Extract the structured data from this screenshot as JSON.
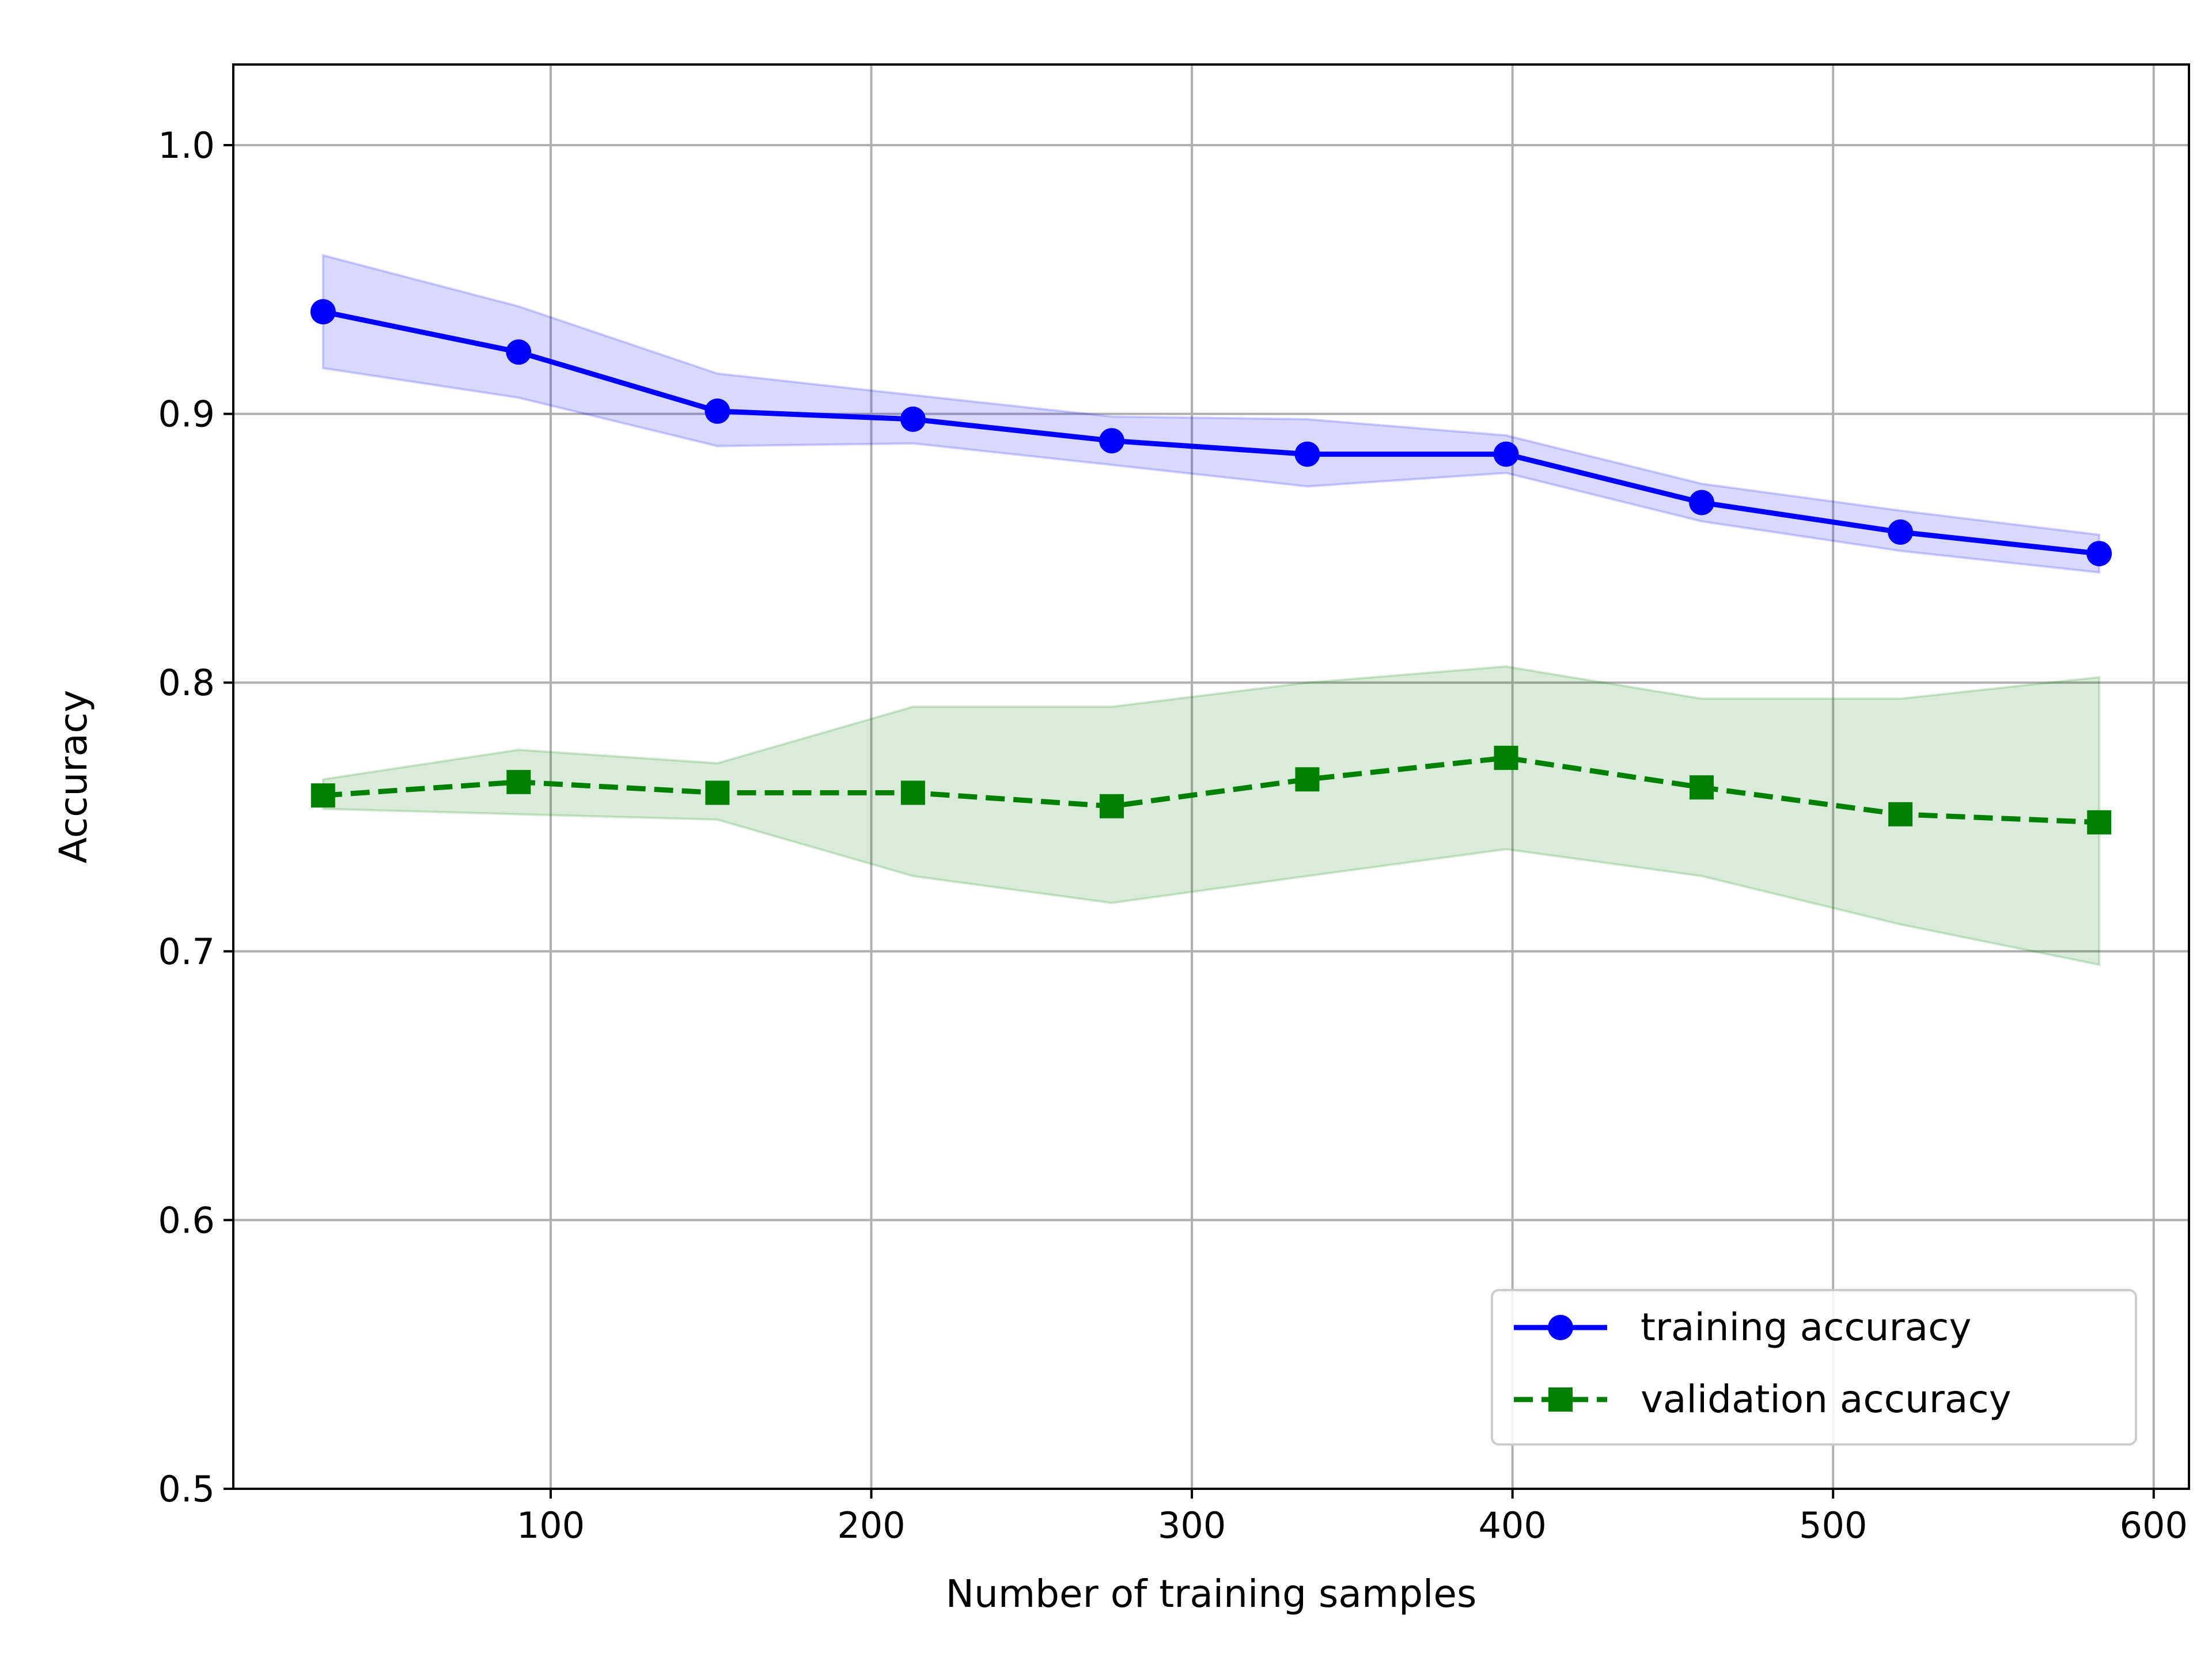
{
  "chart_data": {
    "type": "line",
    "title": "",
    "xlabel": "Number of training samples",
    "ylabel": "Accuracy",
    "xlim": [
      1,
      611
    ],
    "ylim": [
      0.5,
      1.03
    ],
    "xticks": [
      100,
      200,
      300,
      400,
      500,
      600
    ],
    "xtick_labels": [
      "100",
      "200",
      "300",
      "400",
      "500",
      "600"
    ],
    "yticks": [
      0.5,
      0.6,
      0.7,
      0.8,
      0.9,
      1.0
    ],
    "ytick_labels": [
      "0.5",
      "0.6",
      "0.7",
      "0.8",
      "0.9",
      "1.0"
    ],
    "grid": true,
    "legend_position": "bottom-right",
    "x": [
      29,
      90,
      152,
      213,
      275,
      336,
      398,
      459,
      521,
      583
    ],
    "series": [
      {
        "name": "training accuracy",
        "color": "#0000ff",
        "fill_color": "#0000ff",
        "line_style": "solid",
        "marker": "circle",
        "values": [
          0.938,
          0.923,
          0.901,
          0.898,
          0.89,
          0.885,
          0.885,
          0.867,
          0.856,
          0.848
        ],
        "lower": [
          0.917,
          0.906,
          0.888,
          0.889,
          0.881,
          0.873,
          0.878,
          0.86,
          0.849,
          0.841
        ],
        "upper": [
          0.959,
          0.94,
          0.915,
          0.907,
          0.899,
          0.898,
          0.892,
          0.874,
          0.864,
          0.855
        ]
      },
      {
        "name": "validation accuracy",
        "color": "#008000",
        "fill_color": "#008000",
        "line_style": "dashed",
        "marker": "square",
        "values": [
          0.758,
          0.763,
          0.759,
          0.759,
          0.754,
          0.764,
          0.772,
          0.761,
          0.751,
          0.748
        ],
        "lower": [
          0.753,
          0.751,
          0.749,
          0.728,
          0.718,
          0.728,
          0.738,
          0.728,
          0.71,
          0.695
        ],
        "upper": [
          0.764,
          0.775,
          0.77,
          0.791,
          0.791,
          0.8,
          0.806,
          0.794,
          0.794,
          0.802
        ]
      }
    ]
  }
}
